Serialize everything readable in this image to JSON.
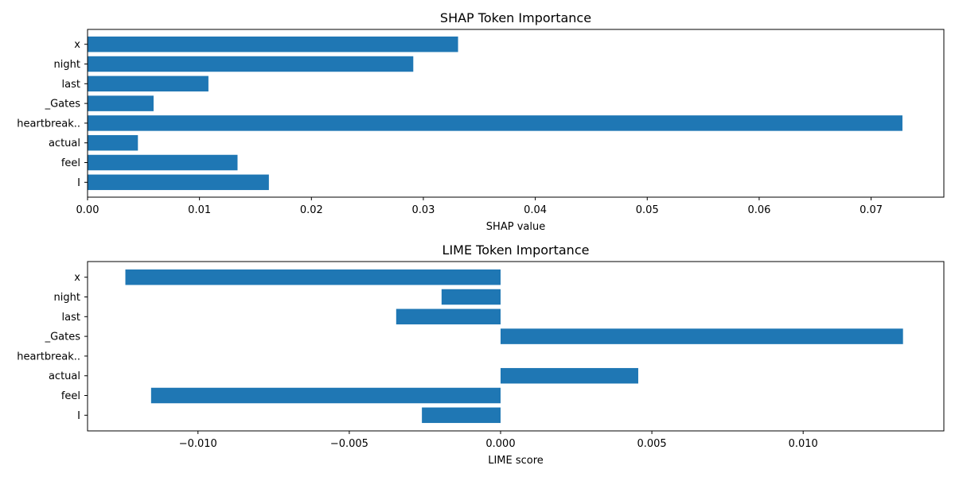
{
  "chart_data": [
    {
      "type": "bar",
      "orientation": "horizontal",
      "title": "SHAP Token Importance",
      "xlabel": "SHAP value",
      "ylabel": "",
      "categories": [
        "I",
        "feel",
        "actual",
        "heartbreak..",
        "_Gates",
        "last",
        "night",
        "x"
      ],
      "values": [
        0.0162,
        0.0134,
        0.0045,
        0.0728,
        0.0059,
        0.0108,
        0.0291,
        0.0331
      ],
      "xlim": [
        0,
        0.0765
      ],
      "xticks": [
        0.0,
        0.01,
        0.02,
        0.03,
        0.04,
        0.05,
        0.06,
        0.07
      ],
      "xtick_labels": [
        "0.00",
        "0.01",
        "0.02",
        "0.03",
        "0.04",
        "0.05",
        "0.06",
        "0.07"
      ],
      "grid": false,
      "bar_color": "#1f77b4"
    },
    {
      "type": "bar",
      "orientation": "horizontal",
      "title": "LIME Token Importance",
      "xlabel": "LIME score",
      "ylabel": "",
      "categories": [
        "I",
        "feel",
        "actual",
        "heartbreak..",
        "_Gates",
        "last",
        "night",
        "x"
      ],
      "values": [
        -0.0026,
        -0.01155,
        0.00455,
        0.0,
        0.0133,
        -0.00345,
        -0.00195,
        -0.0124
      ],
      "xlim": [
        -0.01365,
        0.01465
      ],
      "xticks": [
        -0.01,
        -0.005,
        0.0,
        0.005,
        0.01
      ],
      "xtick_labels": [
        "−0.010",
        "−0.005",
        "0.000",
        "0.005",
        "0.010"
      ],
      "grid": false,
      "bar_color": "#1f77b4"
    }
  ]
}
